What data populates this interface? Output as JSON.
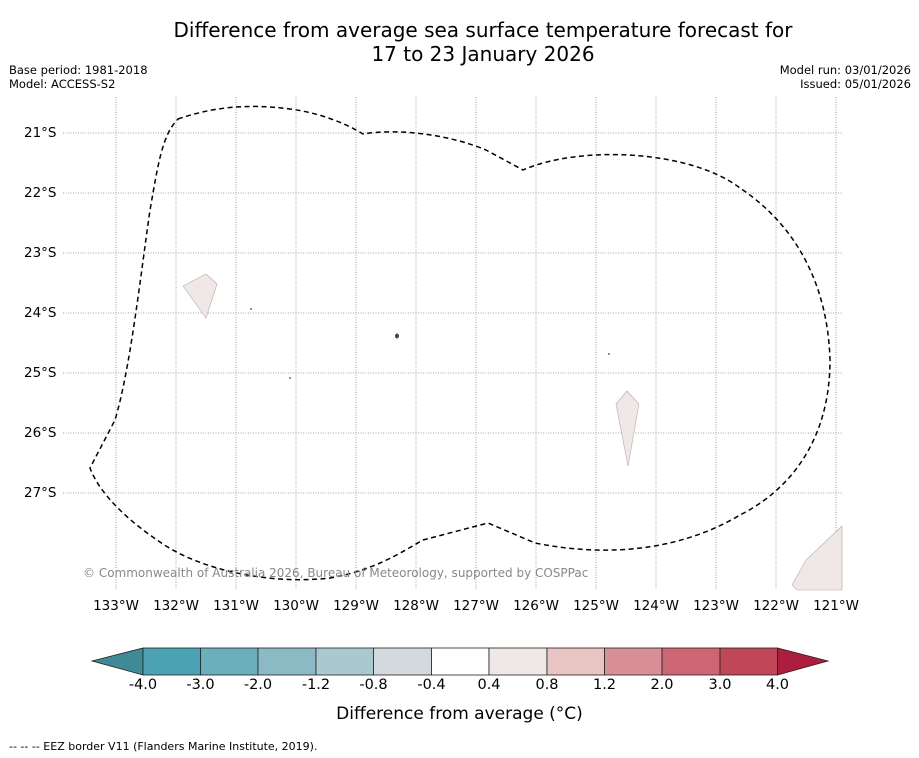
{
  "title": {
    "line1": "Difference from average sea surface temperature forecast for",
    "line2": "17 to 23 January 2026"
  },
  "meta": {
    "base_period": "Base period: 1981-2018",
    "model": "Model: ACCESS-S2",
    "model_run": "Model run: 03/01/2026",
    "issued": "Issued: 05/01/2026"
  },
  "map": {
    "latitude_labels": [
      "21°S",
      "22°S",
      "23°S",
      "24°S",
      "25°S",
      "26°S",
      "27°S"
    ],
    "longitude_labels": [
      "133°W",
      "132°W",
      "131°W",
      "130°W",
      "129°W",
      "128°W",
      "127°W",
      "126°W",
      "125°W",
      "124°W",
      "123°W",
      "122°W",
      "121°W"
    ],
    "copyright": "© Commonwealth of Australia 2026, Bureau of Meteorology, supported by COSPPac",
    "land_color": "#efe8e6",
    "eez_color": "#000000"
  },
  "colorbar": {
    "tick_labels": [
      "-4.0",
      "-3.0",
      "-2.0",
      "-1.2",
      "-0.8",
      "-0.4",
      "0.4",
      "0.8",
      "1.2",
      "2.0",
      "3.0",
      "4.0"
    ],
    "colors": [
      "#4aa2b2",
      "#6cafbc",
      "#8cbac4",
      "#aac9ce",
      "#d3d9dc",
      "#ffffff",
      "#efe8e6",
      "#e8c5c3",
      "#d88f98",
      "#cb6672",
      "#bf4757"
    ],
    "under_color": "#3e8a96",
    "over_color": "#ab1e3d",
    "label": "Difference from average (°C)"
  },
  "footnote": "--  --  -- EEZ border V11 (Flanders Marine Institute, 2019)."
}
